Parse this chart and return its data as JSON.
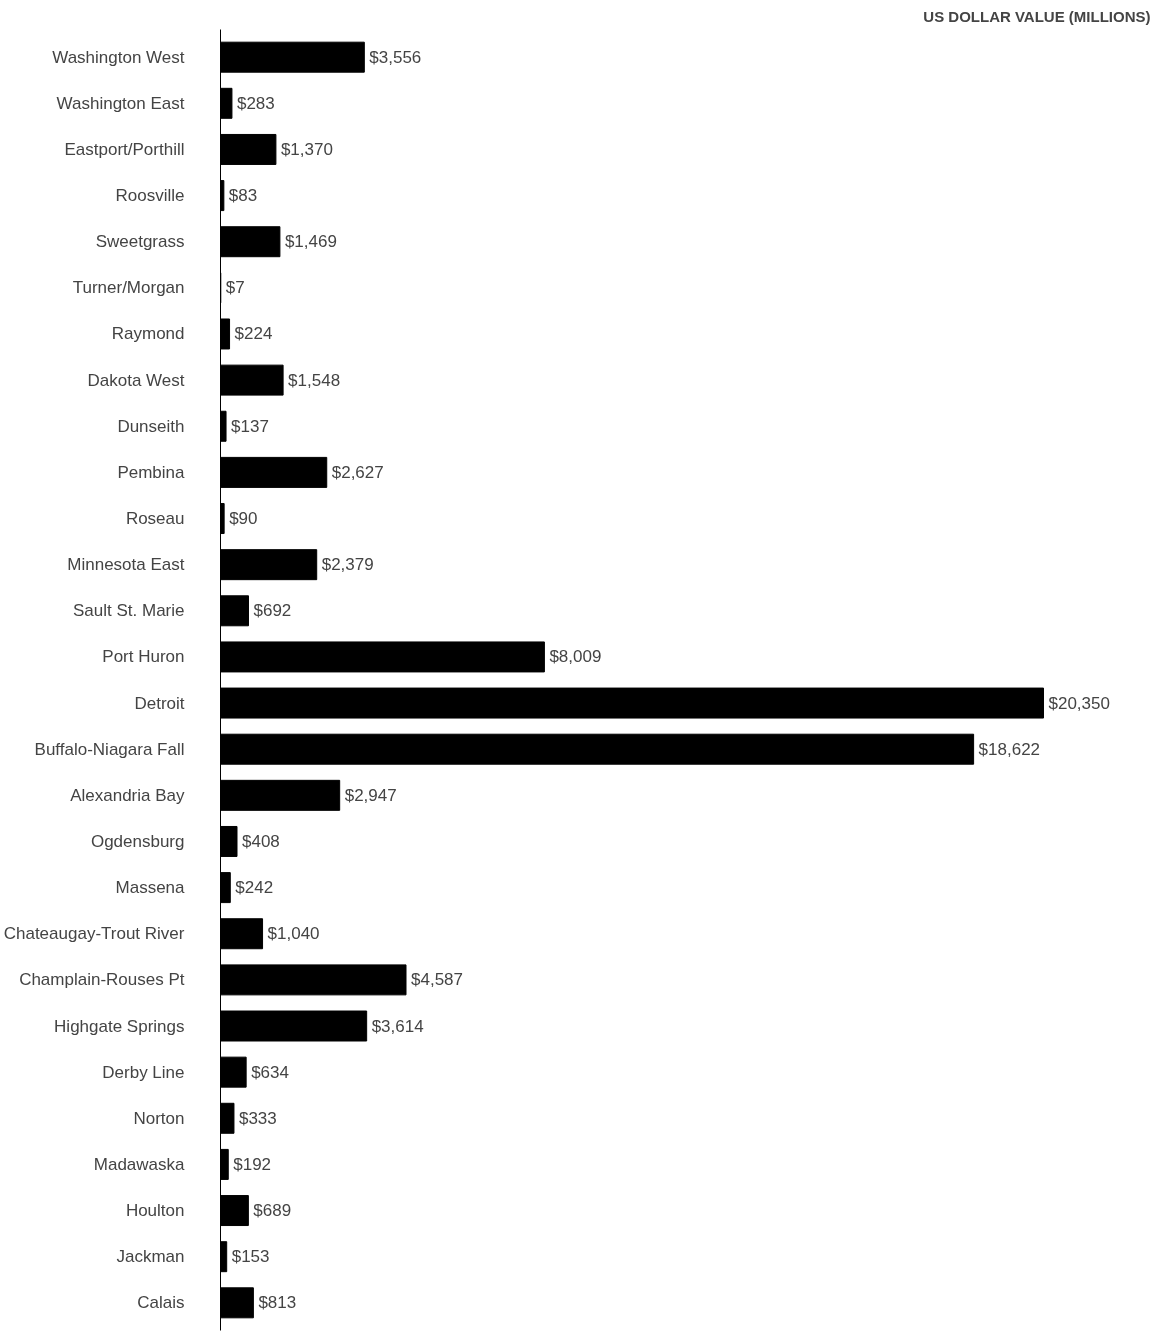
{
  "chart_data": {
    "type": "bar",
    "orientation": "horizontal",
    "title": "US DOLLAR VALUE (MILLIONS)",
    "categories": [
      "Washington West",
      "Washington East",
      "Eastport/Porthill",
      "Roosville",
      "Sweetgrass",
      "Turner/Morgan",
      "Raymond",
      "Dakota West",
      "Dunseith",
      "Pembina",
      "Roseau",
      "Minnesota East",
      "Sault St. Marie",
      "Port Huron",
      "Detroit",
      "Buffalo-Niagara Fall",
      "Alexandria Bay",
      "Ogdensburg",
      "Massena",
      "Chateaugay-Trout River",
      "Champlain-Rouses Pt",
      "Highgate Springs",
      "Derby Line",
      "Norton",
      "Madawaska",
      "Houlton",
      "Jackman",
      "Calais"
    ],
    "values": [
      3556,
      283,
      1370,
      83,
      1469,
      7,
      224,
      1548,
      137,
      2627,
      90,
      2379,
      692,
      8009,
      20350,
      18622,
      2947,
      408,
      242,
      1040,
      4587,
      3614,
      634,
      333,
      192,
      689,
      153,
      813
    ],
    "value_labels": [
      "$3,556",
      "$283",
      "$1,370",
      "$83",
      "$1,469",
      "$7",
      "$224",
      "$1,548",
      "$137",
      "$2,627",
      "$90",
      "$2,379",
      "$692",
      "$8,009",
      "$20,350",
      "$18,622",
      "$2,947",
      "$408",
      "$242",
      "$1,040",
      "$4,587",
      "$3,614",
      "$634",
      "$333",
      "$192",
      "$689",
      "$153",
      "$813"
    ],
    "color": "#000000",
    "tick_labels": "y"
  }
}
